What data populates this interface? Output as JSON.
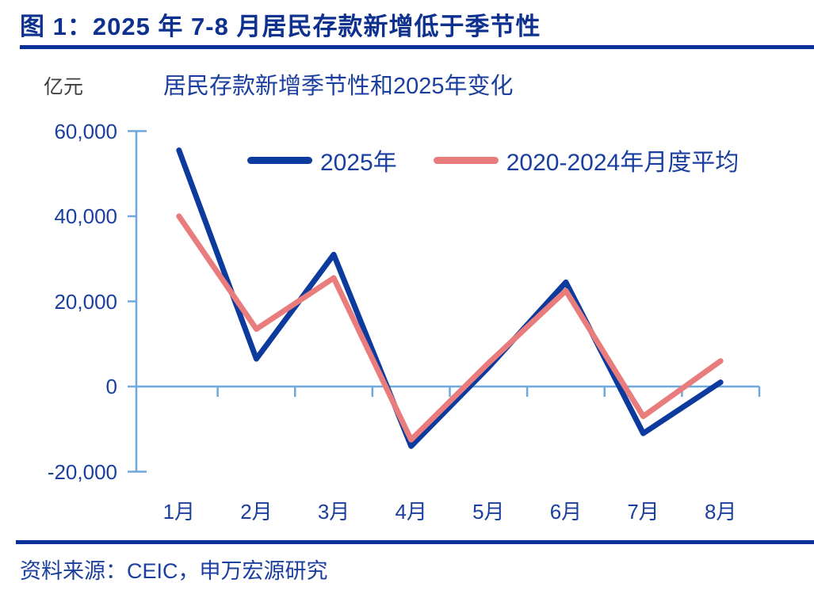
{
  "figure": {
    "title": "图 1：2025 年 7-8 月居民存款新增低于季节性",
    "source": "资料来源：CEIC，申万宏源研究"
  },
  "chart_data": {
    "type": "line",
    "title": "居民存款新增季节性和2025年变化",
    "unit_label": "亿元",
    "categories": [
      "1月",
      "2月",
      "3月",
      "4月",
      "5月",
      "6月",
      "7月",
      "8月"
    ],
    "series": [
      {
        "name": "2025年",
        "color": "#0C3A9D",
        "values": [
          55500,
          6500,
          31000,
          -14000,
          4500,
          24500,
          -11000,
          1000
        ]
      },
      {
        "name": "2020-2024年月度平均",
        "color": "#E97C7C",
        "values": [
          40000,
          13500,
          25500,
          -12500,
          5500,
          22500,
          -7000,
          6000
        ]
      }
    ],
    "y_ticks": [
      60000,
      40000,
      20000,
      0,
      -20000
    ],
    "y_tick_labels": [
      "60,000",
      "40,000",
      "20,000",
      "0",
      "-20,000"
    ],
    "ylim": [
      -20000,
      60000
    ],
    "xlabel": "",
    "ylabel": "亿元",
    "legend_position": "top-center-inside",
    "grid": "zero-line-only",
    "axis_color": "#6FA8DC"
  },
  "colors": {
    "rule_navy": "#08309A",
    "title_navy": "#0E318F",
    "text_blue": "#1B3F9E",
    "unit_gray": "#3F3F3F"
  }
}
